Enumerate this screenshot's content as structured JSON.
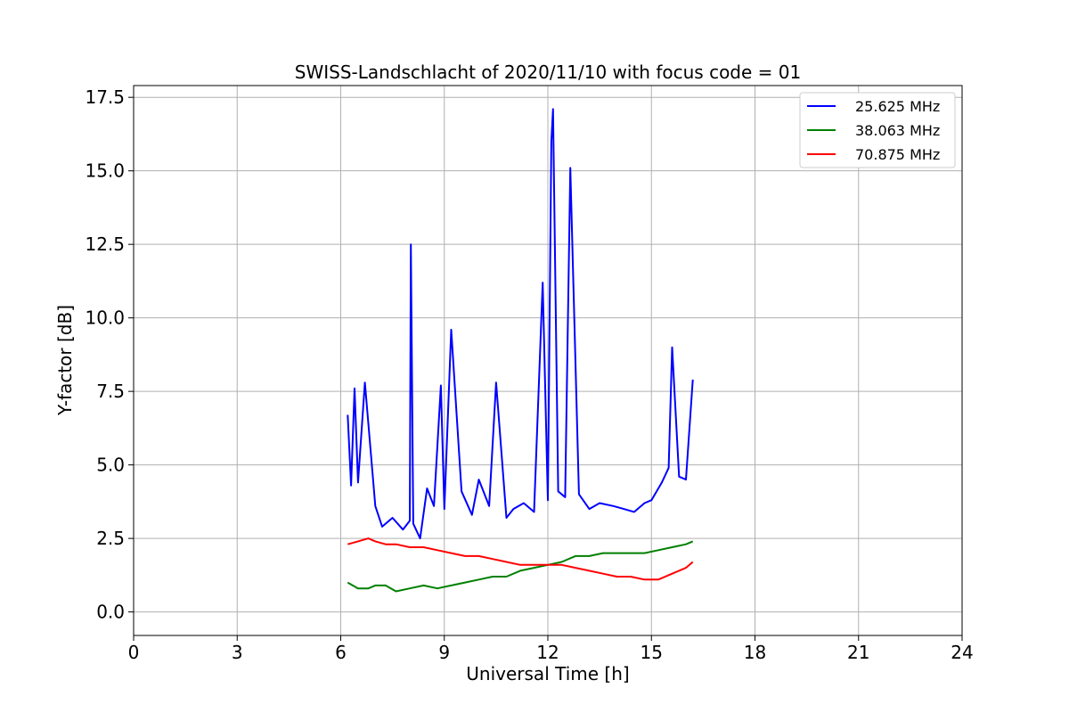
{
  "chart_data": {
    "type": "line",
    "title": "SWISS-Landschlacht of 2020/11/10 with focus code = 01",
    "xlabel": "Universal Time [h]",
    "ylabel": "Y-factor [dB]",
    "xlim": [
      0,
      24
    ],
    "ylim": [
      -0.8,
      17.9
    ],
    "xticks": [
      0,
      3,
      6,
      9,
      12,
      15,
      18,
      21,
      24
    ],
    "xtick_labels": [
      "0",
      "3",
      "6",
      "9",
      "12",
      "15",
      "18",
      "21",
      "24"
    ],
    "yticks": [
      0,
      2.5,
      5,
      7.5,
      10,
      12.5,
      15,
      17.5
    ],
    "ytick_labels": [
      "0.0",
      "2.5",
      "5.0",
      "7.5",
      "10.0",
      "12.5",
      "15.0",
      "17.5"
    ],
    "grid": true,
    "legend_position": "top-right",
    "series": [
      {
        "name": "25.625 MHz",
        "color": "#0000ff",
        "x": [
          6.2,
          6.3,
          6.4,
          6.5,
          6.7,
          7.0,
          7.2,
          7.5,
          7.8,
          8.0,
          8.03,
          8.1,
          8.3,
          8.5,
          8.7,
          8.9,
          9.0,
          9.2,
          9.5,
          9.8,
          10.0,
          10.3,
          10.5,
          10.8,
          11.0,
          11.3,
          11.6,
          11.85,
          12.0,
          12.1,
          12.15,
          12.3,
          12.5,
          12.65,
          12.9,
          13.2,
          13.5,
          13.9,
          14.2,
          14.5,
          14.8,
          15.0,
          15.3,
          15.5,
          15.6,
          15.8,
          16.0,
          16.2
        ],
        "y": [
          6.7,
          4.3,
          7.6,
          4.4,
          7.8,
          3.6,
          2.9,
          3.2,
          2.8,
          3.1,
          12.5,
          3.0,
          2.5,
          4.2,
          3.6,
          7.7,
          3.5,
          9.6,
          4.1,
          3.3,
          4.5,
          3.6,
          7.8,
          3.2,
          3.5,
          3.7,
          3.4,
          11.2,
          3.8,
          16.0,
          17.1,
          4.1,
          3.9,
          15.1,
          4.0,
          3.5,
          3.7,
          3.6,
          3.5,
          3.4,
          3.7,
          3.8,
          4.4,
          4.9,
          9.0,
          4.6,
          4.5,
          7.9
        ]
      },
      {
        "name": "38.063 MHz",
        "color": "#008000",
        "x": [
          6.2,
          6.5,
          6.8,
          7.0,
          7.3,
          7.6,
          8.0,
          8.4,
          8.8,
          9.2,
          9.6,
          10.0,
          10.4,
          10.8,
          11.2,
          11.6,
          12.0,
          12.4,
          12.8,
          13.2,
          13.6,
          14.0,
          14.4,
          14.8,
          15.2,
          15.6,
          16.0,
          16.2
        ],
        "y": [
          1.0,
          0.8,
          0.8,
          0.9,
          0.9,
          0.7,
          0.8,
          0.9,
          0.8,
          0.9,
          1.0,
          1.1,
          1.2,
          1.2,
          1.4,
          1.5,
          1.6,
          1.7,
          1.9,
          1.9,
          2.0,
          2.0,
          2.0,
          2.0,
          2.1,
          2.2,
          2.3,
          2.4
        ]
      },
      {
        "name": "70.875 MHz",
        "color": "#ff0000",
        "x": [
          6.2,
          6.5,
          6.8,
          7.0,
          7.3,
          7.6,
          8.0,
          8.4,
          8.8,
          9.2,
          9.6,
          10.0,
          10.4,
          10.8,
          11.2,
          11.6,
          12.0,
          12.4,
          12.8,
          13.2,
          13.6,
          14.0,
          14.4,
          14.8,
          15.2,
          15.6,
          16.0,
          16.2
        ],
        "y": [
          2.3,
          2.4,
          2.5,
          2.4,
          2.3,
          2.3,
          2.2,
          2.2,
          2.1,
          2.0,
          1.9,
          1.9,
          1.8,
          1.7,
          1.6,
          1.6,
          1.6,
          1.6,
          1.5,
          1.4,
          1.3,
          1.2,
          1.2,
          1.1,
          1.1,
          1.3,
          1.5,
          1.7
        ]
      }
    ]
  }
}
